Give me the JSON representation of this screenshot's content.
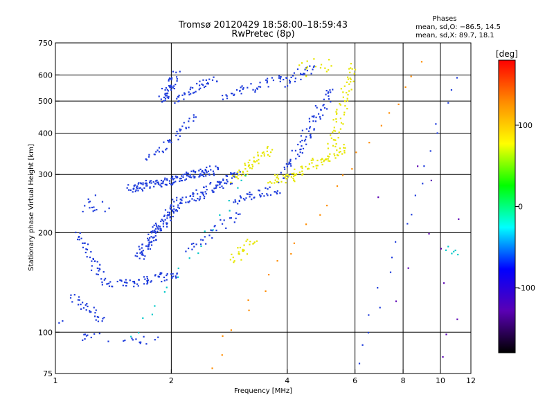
{
  "chart_data": {
    "type": "scatter",
    "title": "Tromsø 20120429 18:58:00–18:59:43",
    "subtitle": "RwPretec (8p)",
    "xlabel": "Frequency [MHz]",
    "ylabel": "Stationary phase Virtual Height [km]",
    "xscale": "log",
    "yscale": "log",
    "xlim": [
      1,
      12
    ],
    "ylim": [
      75,
      750
    ],
    "xticks": [
      1,
      2,
      4,
      6,
      8,
      10,
      12
    ],
    "yticks": [
      75,
      100,
      200,
      300,
      400,
      500,
      600,
      750
    ],
    "grid_x": [
      2,
      4,
      6,
      8,
      10
    ],
    "grid_y": [
      100,
      200,
      300,
      400,
      500,
      600
    ],
    "phase_stats": {
      "title": "Phases",
      "line_o": "mean, sd,O: −86.5, 14.5",
      "line_x": "mean, sd,X:  89.7, 18.1"
    },
    "colorbar": {
      "label": "[deg]",
      "range": [
        -180,
        180
      ],
      "ticks": [
        100,
        0,
        -100
      ],
      "colors": [
        "#ff0000",
        "#ff8c00",
        "#ffff00",
        "#00ff00",
        "#00ffff",
        "#0000ff",
        "#5a00b4",
        "#000000"
      ]
    },
    "series": [
      {
        "color": "#1e3cdc",
        "phase_deg": -90,
        "segments": [
          {
            "x0": 1.0,
            "x1": 1.02,
            "y0": 108,
            "y1": 106,
            "n": 3
          },
          {
            "x0": 1.1,
            "x1": 1.35,
            "y0": 128,
            "y1": 108,
            "n": 30
          },
          {
            "x0": 1.13,
            "x1": 1.35,
            "y0": 200,
            "y1": 140,
            "n": 40
          },
          {
            "x0": 1.2,
            "x1": 1.35,
            "y0": 255,
            "y1": 228,
            "n": 15
          },
          {
            "x0": 1.15,
            "x1": 1.35,
            "y0": 98,
            "y1": 95,
            "n": 10
          },
          {
            "x0": 1.35,
            "x1": 1.55,
            "y0": 140,
            "y1": 140,
            "n": 15
          },
          {
            "x0": 1.55,
            "x1": 2.1,
            "y0": 140,
            "y1": 150,
            "n": 50
          },
          {
            "x0": 1.65,
            "x1": 2.1,
            "y0": 170,
            "y1": 250,
            "n": 120
          },
          {
            "x0": 1.55,
            "x1": 2.6,
            "y0": 270,
            "y1": 310,
            "n": 150
          },
          {
            "x0": 1.75,
            "x1": 2.3,
            "y0": 330,
            "y1": 450,
            "n": 40
          },
          {
            "x0": 1.9,
            "x1": 2.05,
            "y0": 500,
            "y1": 600,
            "n": 45
          },
          {
            "x0": 2.05,
            "x1": 2.6,
            "y0": 500,
            "y1": 590,
            "n": 40
          },
          {
            "x0": 2.2,
            "x1": 3.0,
            "y0": 175,
            "y1": 230,
            "n": 30
          },
          {
            "x0": 2.2,
            "x1": 3.0,
            "y0": 250,
            "y1": 300,
            "n": 80
          },
          {
            "x0": 2.7,
            "x1": 3.9,
            "y0": 510,
            "y1": 590,
            "n": 40
          },
          {
            "x0": 2.9,
            "x1": 3.8,
            "y0": 250,
            "y1": 270,
            "n": 40
          },
          {
            "x0": 3.9,
            "x1": 5.2,
            "y0": 290,
            "y1": 540,
            "n": 80
          },
          {
            "x0": 3.9,
            "x1": 4.7,
            "y0": 560,
            "y1": 640,
            "n": 30
          },
          {
            "x0": 1.5,
            "x1": 1.9,
            "y0": 95,
            "y1": 95,
            "n": 12
          },
          {
            "x0": 6.0,
            "x1": 11.0,
            "y0": 80,
            "y1": 600,
            "n": 20
          }
        ]
      },
      {
        "color": "#e6e600",
        "phase_deg": 110,
        "segments": [
          {
            "x0": 2.9,
            "x1": 3.6,
            "y0": 290,
            "y1": 360,
            "n": 50
          },
          {
            "x0": 3.6,
            "x1": 4.2,
            "y0": 290,
            "y1": 295,
            "n": 30
          },
          {
            "x0": 4.2,
            "x1": 5.6,
            "y0": 300,
            "y1": 360,
            "n": 60
          },
          {
            "x0": 5.2,
            "x1": 5.9,
            "y0": 360,
            "y1": 640,
            "n": 60
          },
          {
            "x0": 2.9,
            "x1": 3.3,
            "y0": 165,
            "y1": 190,
            "n": 25
          },
          {
            "x0": 4.3,
            "x1": 5.2,
            "y0": 610,
            "y1": 660,
            "n": 15
          }
        ]
      },
      {
        "color": "#ff8c00",
        "phase_deg": 150,
        "segments": [
          {
            "x0": 2.5,
            "x1": 9.0,
            "y0": 80,
            "y1": 640,
            "n": 25
          }
        ]
      },
      {
        "color": "#00c8c8",
        "phase_deg": 20,
        "segments": [
          {
            "x0": 1.6,
            "x1": 3.2,
            "y0": 95,
            "y1": 300,
            "n": 20
          },
          {
            "x0": 10.5,
            "x1": 10.8,
            "y0": 170,
            "y1": 180,
            "n": 6
          }
        ]
      },
      {
        "color": "#5a00b4",
        "phase_deg": -140,
        "segments": [
          {
            "x0": 6.5,
            "x1": 11.0,
            "y0": 85,
            "y1": 320,
            "n": 12
          }
        ]
      }
    ]
  }
}
